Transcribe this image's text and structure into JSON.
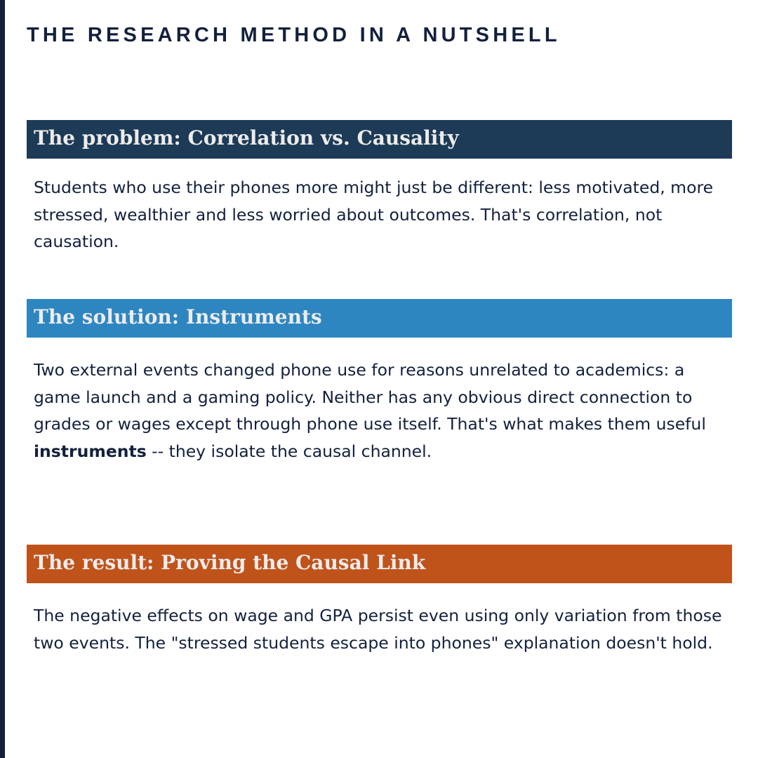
{
  "title": "THE RESEARCH METHOD IN A NUTSHELL",
  "sections": [
    {
      "heading": "The problem: Correlation vs. Causality",
      "color": "#1d3a57",
      "body": "Students who use their phones more might just be different: less motivated, more stressed, wealthier and less worried about outcomes. That's correlation, not causation."
    },
    {
      "heading": "The solution: Instruments",
      "color": "#2e86c1",
      "body_before": "Two external events changed phone use for reasons unrelated to academics: a game launch and a gaming policy. Neither has any obvious direct connection to grades or wages except through phone use itself. That's what makes them useful ",
      "body_bold": "instruments",
      "body_after": " -- they isolate the causal channel."
    },
    {
      "heading": "The result: Proving the Causal Link",
      "color": "#c0531a",
      "body": "The negative effects on wage and GPA persist even using only variation from those two events. The \"stressed students escape into phones\" explanation doesn't hold."
    }
  ]
}
